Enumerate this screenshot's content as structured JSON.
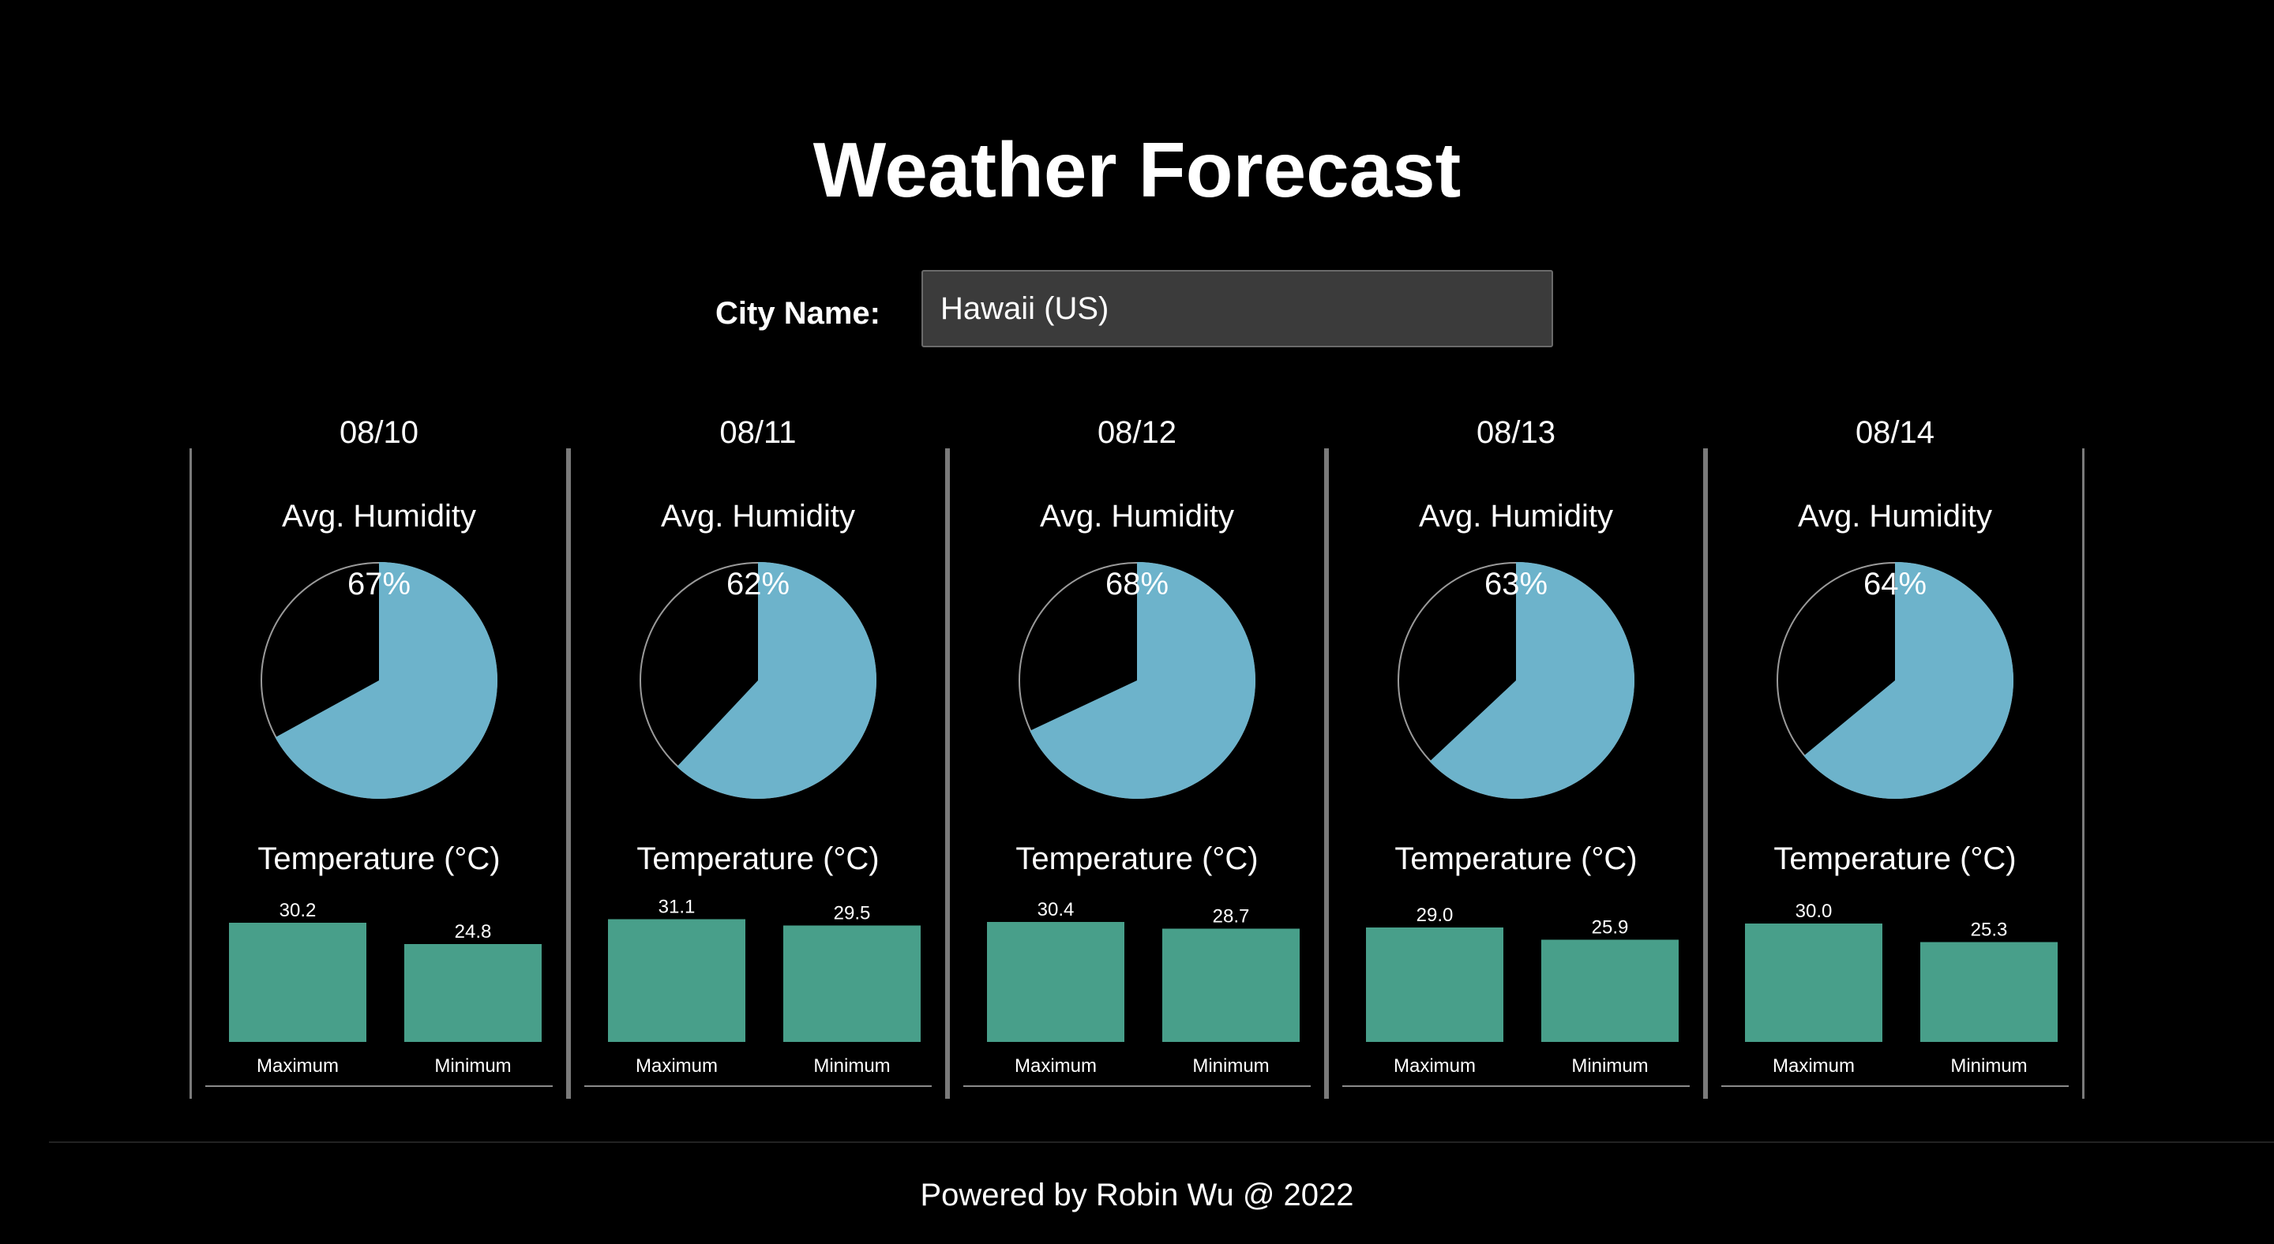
{
  "page": {
    "title": "Weather Forecast",
    "footer": "Powered by Robin Wu @ 2022"
  },
  "search": {
    "label": "City Name:",
    "value": "Hawaii (US)"
  },
  "colors": {
    "background": "#000000",
    "humidity_fill": "#6db3cb",
    "pie_outline": "#9a9a9a",
    "bar_fill": "#489f8a",
    "text": "#ffffff"
  },
  "forecast": [
    {
      "date": "08/10",
      "humidity_title": "Avg. Humidity",
      "humidity_label": "67%",
      "temp_title": "Temperature (°C)"
    },
    {
      "date": "08/11",
      "humidity_title": "Avg. Humidity",
      "humidity_label": "62%",
      "temp_title": "Temperature (°C)"
    },
    {
      "date": "08/12",
      "humidity_title": "Avg. Humidity",
      "humidity_label": "68%",
      "temp_title": "Temperature (°C)"
    },
    {
      "date": "08/13",
      "humidity_title": "Avg. Humidity",
      "humidity_label": "63%",
      "temp_title": "Temperature (°C)"
    },
    {
      "date": "08/14",
      "humidity_title": "Avg. Humidity",
      "humidity_label": "64%",
      "temp_title": "Temperature (°C)"
    }
  ],
  "chart_data": [
    {
      "type": "pie",
      "title": "Avg. Humidity",
      "values": [
        67,
        33
      ],
      "value_label": "67%"
    },
    {
      "type": "bar",
      "title": "Temperature (°C)",
      "categories": [
        "Maximum",
        "Minimum"
      ],
      "values": [
        30.2,
        24.8
      ],
      "value_labels": [
        "30.2",
        "24.8"
      ]
    },
    {
      "type": "pie",
      "title": "Avg. Humidity",
      "values": [
        62,
        38
      ],
      "value_label": "62%"
    },
    {
      "type": "bar",
      "title": "Temperature (°C)",
      "categories": [
        "Maximum",
        "Minimum"
      ],
      "values": [
        31.1,
        29.5
      ],
      "value_labels": [
        "31.1",
        "29.5"
      ]
    },
    {
      "type": "pie",
      "title": "Avg. Humidity",
      "values": [
        68,
        32
      ],
      "value_label": "68%"
    },
    {
      "type": "bar",
      "title": "Temperature (°C)",
      "categories": [
        "Maximum",
        "Minimum"
      ],
      "values": [
        30.4,
        28.7
      ],
      "value_labels": [
        "30.4",
        "28.7"
      ]
    },
    {
      "type": "pie",
      "title": "Avg. Humidity",
      "values": [
        63,
        37
      ],
      "value_label": "63%"
    },
    {
      "type": "bar",
      "title": "Temperature (°C)",
      "categories": [
        "Maximum",
        "Minimum"
      ],
      "values": [
        29.0,
        25.9
      ],
      "value_labels": [
        "29.0",
        "25.9"
      ]
    },
    {
      "type": "pie",
      "title": "Avg. Humidity",
      "values": [
        64,
        36
      ],
      "value_label": "64%"
    },
    {
      "type": "bar",
      "title": "Temperature (°C)",
      "categories": [
        "Maximum",
        "Minimum"
      ],
      "values": [
        30.0,
        25.3
      ],
      "value_labels": [
        "30.0",
        "25.3"
      ]
    }
  ]
}
